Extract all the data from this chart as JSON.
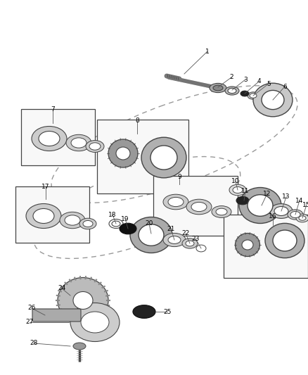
{
  "bg_color": "#ffffff",
  "dash_color": "#999999",
  "line_color": "#444444",
  "label_fontsize": 6.5,
  "fig_width": 4.38,
  "fig_height": 5.33,
  "dpi": 100
}
